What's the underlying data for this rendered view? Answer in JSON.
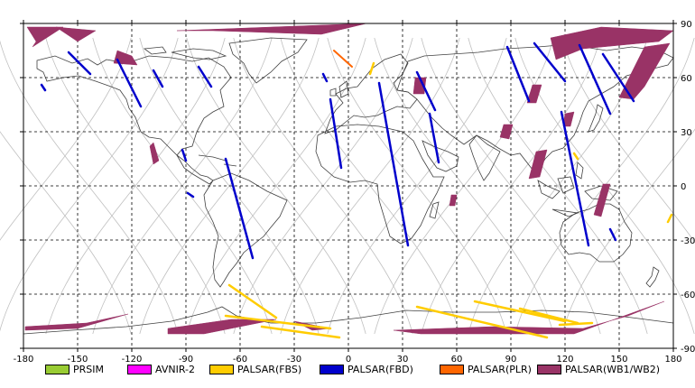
{
  "map": {
    "x_ticks": [
      "-180",
      "-150",
      "-120",
      "-90",
      "-60",
      "-30",
      "0",
      "30",
      "60",
      "90",
      "120",
      "150",
      "180"
    ],
    "y_ticks": [
      "90",
      "60",
      "30",
      "0",
      "-30",
      "-60",
      "-90"
    ],
    "lon_range": [
      -180,
      180
    ],
    "lat_range": [
      -90,
      90
    ],
    "grid": "dashed",
    "colors": {
      "frame": "#000000",
      "grid": "#000000",
      "coastline": "#404040",
      "orbit": "#c0c0c0",
      "prism": "#99cc33",
      "avnir2": "#ff00ff",
      "palsar_fbs": "#ffcc00",
      "palsar_fbd": "#0000cc",
      "palsar_plr": "#ff6600",
      "palsar_wb": "#993366"
    }
  },
  "legend": {
    "items": [
      {
        "label": "PRSIM",
        "color": "#99cc33",
        "icon": "swatch"
      },
      {
        "label": "AVNIR-2",
        "color": "#ff00ff",
        "icon": "swatch"
      },
      {
        "label": "PALSAR(FBS)",
        "color": "#ffcc00",
        "icon": "swatch"
      },
      {
        "label": "PALSAR(FBD)",
        "color": "#0000cc",
        "icon": "swatch"
      },
      {
        "label": "PALSAR(PLR)",
        "color": "#ff6600",
        "icon": "swatch"
      },
      {
        "label": "PALSAR(WB1/WB2)",
        "color": "#993366",
        "icon": "swatch"
      }
    ]
  },
  "observations": {
    "fbd_passes": [
      [
        [
          -155,
          74
        ],
        [
          -143,
          62
        ]
      ],
      [
        [
          -128,
          70
        ],
        [
          -115,
          44
        ]
      ],
      [
        [
          -108,
          64
        ],
        [
          -103,
          55
        ]
      ],
      [
        [
          -83,
          66
        ],
        [
          -76,
          55
        ]
      ],
      [
        [
          -170,
          56
        ],
        [
          -168,
          53
        ]
      ],
      [
        [
          -68,
          15
        ],
        [
          -53,
          -40
        ]
      ],
      [
        [
          -92,
          20
        ],
        [
          -90,
          14
        ]
      ],
      [
        [
          -10,
          48
        ],
        [
          -4,
          10
        ]
      ],
      [
        [
          17,
          57
        ],
        [
          33,
          -33
        ]
      ],
      [
        [
          38,
          63
        ],
        [
          48,
          42
        ]
      ],
      [
        [
          45,
          40
        ],
        [
          50,
          13
        ]
      ],
      [
        [
          88,
          77
        ],
        [
          100,
          47
        ]
      ],
      [
        [
          103,
          79
        ],
        [
          120,
          58
        ]
      ],
      [
        [
          118,
          41
        ],
        [
          133,
          -33
        ]
      ],
      [
        [
          128,
          78
        ],
        [
          145,
          40
        ]
      ],
      [
        [
          145,
          -24
        ],
        [
          148,
          -30
        ]
      ],
      [
        [
          141,
          73
        ],
        [
          158,
          47
        ]
      ],
      [
        [
          -89,
          -4
        ],
        [
          -86,
          -6
        ]
      ],
      [
        [
          -14,
          62
        ],
        [
          -12,
          58
        ]
      ]
    ],
    "plr_passes": [
      [
        [
          -8,
          75
        ],
        [
          2,
          66
        ]
      ]
    ],
    "fbs_passes": [
      [
        [
          -66,
          -55
        ],
        [
          -40,
          -73
        ]
      ],
      [
        [
          -68,
          -72
        ],
        [
          -10,
          -79
        ]
      ],
      [
        [
          -48,
          -78
        ],
        [
          -5,
          -84
        ]
      ],
      [
        [
          38,
          -67
        ],
        [
          110,
          -84
        ]
      ],
      [
        [
          70,
          -64
        ],
        [
          120,
          -75
        ]
      ],
      [
        [
          95,
          -68
        ],
        [
          127,
          -76
        ]
      ],
      [
        [
          117,
          -77
        ],
        [
          135,
          -76
        ]
      ],
      [
        [
          14,
          68
        ],
        [
          12,
          62
        ]
      ],
      [
        [
          177,
          -20
        ],
        [
          179,
          -16
        ]
      ],
      [
        [
          125,
          18
        ],
        [
          127,
          15
        ]
      ]
    ],
    "wb_swaths": [
      [
        [
          -178,
          88
        ],
        [
          -158,
          88
        ],
        [
          -175,
          77
        ],
        [
          -173,
          80
        ]
      ],
      [
        [
          -162,
          88
        ],
        [
          -140,
          86
        ],
        [
          -150,
          80
        ]
      ],
      [
        [
          -95,
          86
        ],
        [
          10,
          90
        ],
        [
          -15,
          84
        ],
        [
          -75,
          86
        ]
      ],
      [
        [
          -130,
          68
        ],
        [
          -128,
          75
        ],
        [
          -120,
          72
        ],
        [
          -117,
          67
        ]
      ],
      [
        [
          -110,
          22
        ],
        [
          -108,
          24
        ],
        [
          -105,
          14
        ],
        [
          -108,
          12
        ]
      ],
      [
        [
          -179,
          -78
        ],
        [
          -145,
          -76
        ],
        [
          -122,
          -71
        ],
        [
          -150,
          -79
        ],
        [
          -179,
          -80
        ]
      ],
      [
        [
          -100,
          -79
        ],
        [
          -65,
          -74
        ],
        [
          -40,
          -74
        ],
        [
          -80,
          -82
        ],
        [
          -100,
          -82
        ]
      ],
      [
        [
          -30,
          -75
        ],
        [
          -10,
          -79
        ],
        [
          -20,
          -80
        ]
      ],
      [
        [
          25,
          -80
        ],
        [
          80,
          -78
        ],
        [
          130,
          -79
        ],
        [
          155,
          -72
        ],
        [
          175,
          -64
        ],
        [
          125,
          -82
        ],
        [
          40,
          -82
        ]
      ],
      [
        [
          112,
          82
        ],
        [
          140,
          88
        ],
        [
          180,
          86
        ],
        [
          172,
          80
        ],
        [
          130,
          76
        ],
        [
          115,
          70
        ]
      ],
      [
        [
          164,
          77
        ],
        [
          178,
          79
        ],
        [
          164,
          55
        ],
        [
          158,
          48
        ],
        [
          150,
          49
        ]
      ],
      [
        [
          37,
          60
        ],
        [
          43,
          60
        ],
        [
          42,
          51
        ],
        [
          36,
          51
        ]
      ],
      [
        [
          104,
          19
        ],
        [
          110,
          20
        ],
        [
          106,
          5
        ],
        [
          100,
          4
        ]
      ],
      [
        [
          86,
          34
        ],
        [
          91,
          34
        ],
        [
          89,
          26
        ],
        [
          84,
          27
        ]
      ],
      [
        [
          102,
          56
        ],
        [
          107,
          56
        ],
        [
          104,
          46
        ],
        [
          99,
          46
        ]
      ],
      [
        [
          120,
          40
        ],
        [
          125,
          41
        ],
        [
          123,
          33
        ],
        [
          119,
          33
        ]
      ],
      [
        [
          141,
          1
        ],
        [
          145,
          1
        ],
        [
          140,
          -17
        ],
        [
          136,
          -16
        ]
      ],
      [
        [
          57,
          -5
        ],
        [
          60,
          -5
        ],
        [
          59,
          -11
        ],
        [
          56,
          -11
        ]
      ]
    ]
  }
}
